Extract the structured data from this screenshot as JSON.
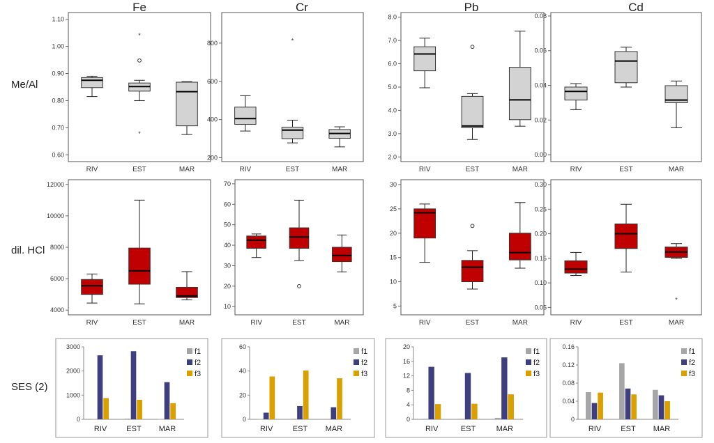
{
  "metals": [
    "Fe",
    "Cr",
    "Pb",
    "Cd"
  ],
  "row_labels": [
    "Me/Al",
    "dil. HCl",
    "SES (2)"
  ],
  "colors": {
    "box_gray": "#d3d3d3",
    "box_red": "#c00000",
    "f1": "#a6a6a6",
    "f2": "#3f3f80",
    "f3": "#d9a000",
    "frame": "#555555"
  },
  "chart_data": [
    {
      "type": "box",
      "row": "Me/Al",
      "metal": "Fe",
      "categories": [
        "RIV",
        "EST",
        "MAR"
      ],
      "ylim": [
        0.575,
        1.125
      ],
      "yticks": [
        0.6,
        0.7,
        0.8,
        0.9,
        1.0,
        1.1
      ],
      "ytick_labels": [
        "0.60",
        "0.70",
        "0.80",
        "0.90",
        "1.00",
        "1.10"
      ],
      "boxes": [
        {
          "min": 0.815,
          "q1": 0.848,
          "median": 0.875,
          "q3": 0.885,
          "max": 0.89,
          "outliers": []
        },
        {
          "min": 0.8,
          "q1": 0.835,
          "median": 0.852,
          "q3": 0.865,
          "max": 0.875,
          "outliers": [
            {
              "v": 1.045,
              "s": "*"
            },
            {
              "v": 0.948,
              "s": "o"
            },
            {
              "v": 0.683,
              "s": "*"
            }
          ]
        },
        {
          "min": 0.675,
          "q1": 0.707,
          "median": 0.833,
          "q3": 0.868,
          "max": 0.87,
          "outliers": []
        }
      ]
    },
    {
      "type": "box",
      "row": "Me/Al",
      "metal": "Cr",
      "categories": [
        "RIV",
        "EST",
        "MAR"
      ],
      "ylim": [
        180,
        960
      ],
      "yticks": [
        200,
        400,
        600,
        800
      ],
      "ytick_labels": [
        "200",
        "400",
        "600",
        "800"
      ],
      "boxes": [
        {
          "min": 340,
          "q1": 375,
          "median": 405,
          "q3": 465,
          "max": 525,
          "outliers": []
        },
        {
          "min": 278,
          "q1": 300,
          "median": 345,
          "q3": 360,
          "max": 397,
          "outliers": [
            {
              "v": 820,
              "s": "*"
            }
          ]
        },
        {
          "min": 257,
          "q1": 302,
          "median": 327,
          "q3": 348,
          "max": 362,
          "outliers": []
        }
      ]
    },
    {
      "type": "box",
      "row": "Me/Al",
      "metal": "Pb",
      "categories": [
        "RIV",
        "EST",
        "MAR"
      ],
      "ylim": [
        1.8,
        8.2
      ],
      "yticks": [
        2,
        3,
        4,
        5,
        6,
        7,
        8
      ],
      "ytick_labels": [
        "2.0",
        "3.0",
        "4.0",
        "5.0",
        "6.0",
        "7.0",
        "8.0"
      ],
      "boxes": [
        {
          "min": 4.97,
          "q1": 5.7,
          "median": 6.42,
          "q3": 6.73,
          "max": 7.1,
          "outliers": []
        },
        {
          "min": 2.75,
          "q1": 3.25,
          "median": 3.33,
          "q3": 4.6,
          "max": 4.72,
          "outliers": [
            {
              "v": 6.73,
              "s": "o"
            }
          ]
        },
        {
          "min": 3.32,
          "q1": 3.6,
          "median": 4.45,
          "q3": 5.85,
          "max": 7.4,
          "outliers": []
        }
      ]
    },
    {
      "type": "box",
      "row": "Me/Al",
      "metal": "Cd",
      "categories": [
        "RIV",
        "EST",
        "MAR"
      ],
      "ylim": [
        -0.004,
        0.082
      ],
      "yticks": [
        0.0,
        0.02,
        0.04,
        0.06,
        0.08
      ],
      "ytick_labels": [
        "0.00",
        "0.02",
        "0.04",
        "0.06",
        "0.08"
      ],
      "boxes": [
        {
          "min": 0.026,
          "q1": 0.0315,
          "median": 0.0365,
          "q3": 0.039,
          "max": 0.041,
          "outliers": []
        },
        {
          "min": 0.039,
          "q1": 0.0415,
          "median": 0.054,
          "q3": 0.0595,
          "max": 0.062,
          "outliers": []
        },
        {
          "min": 0.0155,
          "q1": 0.03,
          "median": 0.0315,
          "q3": 0.0398,
          "max": 0.0425,
          "outliers": []
        }
      ]
    },
    {
      "type": "box",
      "row": "dil. HCl",
      "metal": "Fe",
      "categories": [
        "RIV",
        "EST",
        "MAR"
      ],
      "ylim": [
        3700,
        12300
      ],
      "yticks": [
        4000,
        6000,
        8000,
        10000,
        12000
      ],
      "ytick_labels": [
        "4000",
        "6000",
        "8000",
        "10000",
        "12000"
      ],
      "boxes": [
        {
          "min": 4450,
          "q1": 5000,
          "median": 5550,
          "q3": 5950,
          "max": 6300,
          "outliers": []
        },
        {
          "min": 4400,
          "q1": 5650,
          "median": 6500,
          "q3": 7950,
          "max": 11000,
          "outliers": []
        },
        {
          "min": 4650,
          "q1": 4800,
          "median": 4900,
          "q3": 5450,
          "max": 6450,
          "outliers": []
        }
      ]
    },
    {
      "type": "box",
      "row": "dil. HCl",
      "metal": "Cr",
      "categories": [
        "RIV",
        "EST",
        "MAR"
      ],
      "ylim": [
        6,
        72
      ],
      "yticks": [
        10,
        20,
        30,
        40,
        50,
        60,
        70
      ],
      "ytick_labels": [
        "10",
        "20",
        "30",
        "40",
        "50",
        "60",
        "70"
      ],
      "boxes": [
        {
          "min": 34,
          "q1": 38.5,
          "median": 42.5,
          "q3": 44.5,
          "max": 45.5,
          "outliers": []
        },
        {
          "min": 32.5,
          "q1": 38.5,
          "median": 44,
          "q3": 48.5,
          "max": 62,
          "outliers": [
            {
              "v": 20,
              "s": "o"
            }
          ]
        },
        {
          "min": 27,
          "q1": 32,
          "median": 35,
          "q3": 39,
          "max": 45,
          "outliers": []
        }
      ]
    },
    {
      "type": "box",
      "row": "dil. HCl",
      "metal": "Pb",
      "categories": [
        "RIV",
        "EST",
        "MAR"
      ],
      "ylim": [
        3.2,
        31
      ],
      "yticks": [
        5,
        10,
        15,
        20,
        25,
        30
      ],
      "ytick_labels": [
        "5",
        "10",
        "15",
        "20",
        "25",
        "30"
      ],
      "boxes": [
        {
          "min": 14,
          "q1": 19,
          "median": 24.2,
          "q3": 25,
          "max": 26,
          "outliers": []
        },
        {
          "min": 8.5,
          "q1": 10,
          "median": 13,
          "q3": 14.4,
          "max": 16.4,
          "outliers": [
            {
              "v": 21.5,
              "s": "o"
            }
          ]
        },
        {
          "min": 12.8,
          "q1": 14.5,
          "median": 16,
          "q3": 20,
          "max": 26.3,
          "outliers": []
        }
      ]
    },
    {
      "type": "box",
      "row": "dil. HCl",
      "metal": "Cd",
      "categories": [
        "RIV",
        "EST",
        "MAR"
      ],
      "ylim": [
        0.035,
        0.31
      ],
      "yticks": [
        0.05,
        0.1,
        0.15,
        0.2,
        0.25,
        0.3
      ],
      "ytick_labels": [
        "0.05",
        "0.10",
        "0.15",
        "0.20",
        "0.25",
        "0.30"
      ],
      "boxes": [
        {
          "min": 0.115,
          "q1": 0.12,
          "median": 0.128,
          "q3": 0.145,
          "max": 0.162,
          "outliers": []
        },
        {
          "min": 0.122,
          "q1": 0.17,
          "median": 0.2,
          "q3": 0.22,
          "max": 0.26,
          "outliers": []
        },
        {
          "min": 0.15,
          "q1": 0.152,
          "median": 0.163,
          "q3": 0.173,
          "max": 0.18,
          "outliers": [
            {
              "v": 0.068,
              "s": "*"
            }
          ]
        }
      ]
    },
    {
      "type": "bar",
      "row": "SES (2)",
      "metal": "Fe",
      "categories": [
        "RIV",
        "EST",
        "MAR"
      ],
      "ylim": [
        0,
        3000
      ],
      "yticks": [
        0,
        1000,
        2000,
        3000
      ],
      "ytick_labels": [
        "0",
        "1000",
        "2000",
        "3000"
      ],
      "legend": [
        "f1",
        "f2",
        "f3"
      ],
      "series": [
        {
          "name": "f1",
          "values": [
            15,
            30,
            10
          ]
        },
        {
          "name": "f2",
          "values": [
            2650,
            2820,
            1540
          ]
        },
        {
          "name": "f3",
          "values": [
            880,
            810,
            670
          ]
        }
      ]
    },
    {
      "type": "bar",
      "row": "SES (2)",
      "metal": "Cr",
      "categories": [
        "RIV",
        "EST",
        "MAR"
      ],
      "ylim": [
        0,
        60
      ],
      "yticks": [
        0,
        20,
        40,
        60
      ],
      "ytick_labels": [
        "0",
        "20",
        "40",
        "60"
      ],
      "legend": [
        "f1",
        "f2",
        "f3"
      ],
      "series": [
        {
          "name": "f1",
          "values": [
            0.3,
            0.5,
            0.4
          ]
        },
        {
          "name": "f2",
          "values": [
            5.5,
            11,
            10
          ]
        },
        {
          "name": "f3",
          "values": [
            35.5,
            40.5,
            34
          ]
        }
      ]
    },
    {
      "type": "bar",
      "row": "SES (2)",
      "metal": "Pb",
      "categories": [
        "RIV",
        "EST",
        "MAR"
      ],
      "ylim": [
        0,
        20
      ],
      "yticks": [
        0,
        4,
        8,
        12,
        16,
        20
      ],
      "ytick_labels": [
        "0",
        "4",
        "8",
        "12",
        "16",
        "20"
      ],
      "legend": [
        "f1",
        "f2",
        "f3"
      ],
      "series": [
        {
          "name": "f1",
          "values": [
            0.15,
            0.15,
            0.4
          ]
        },
        {
          "name": "f2",
          "values": [
            14.5,
            12.8,
            17.1
          ]
        },
        {
          "name": "f3",
          "values": [
            4.2,
            4.3,
            6.9
          ]
        }
      ]
    },
    {
      "type": "bar",
      "row": "SES (2)",
      "metal": "Cd",
      "categories": [
        "RIV",
        "EST",
        "MAR"
      ],
      "ylim": [
        0,
        0.16
      ],
      "yticks": [
        0,
        0.04,
        0.08,
        0.12,
        0.16
      ],
      "ytick_labels": [
        "0",
        "0.04",
        "0.08",
        "0.12",
        "0.16"
      ],
      "legend": [
        "f1",
        "f2",
        "f3"
      ],
      "series": [
        {
          "name": "f1",
          "values": [
            0.06,
            0.124,
            0.065
          ]
        },
        {
          "name": "f2",
          "values": [
            0.036,
            0.068,
            0.053
          ]
        },
        {
          "name": "f3",
          "values": [
            0.059,
            0.055,
            0.04
          ]
        }
      ]
    }
  ]
}
